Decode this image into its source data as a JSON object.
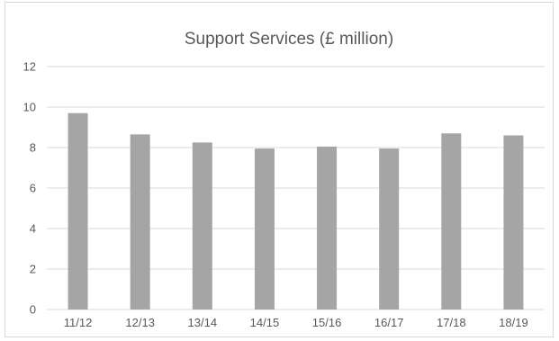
{
  "chart_data": {
    "type": "bar",
    "title": "Support Services (£ million)",
    "xlabel": "",
    "ylabel": "",
    "categories": [
      "11/12",
      "12/13",
      "13/14",
      "14/15",
      "15/16",
      "16/17",
      "17/18",
      "18/19"
    ],
    "values": [
      9.7,
      8.65,
      8.25,
      7.95,
      8.05,
      7.95,
      8.7,
      8.6
    ],
    "ylim": [
      0,
      12
    ],
    "yticks": [
      0,
      2,
      4,
      6,
      8,
      10,
      12
    ],
    "grid": true,
    "legend": "none",
    "colors": {
      "bar": "#a5a5a5",
      "grid": "#d9d9d9",
      "text": "#595959"
    }
  }
}
